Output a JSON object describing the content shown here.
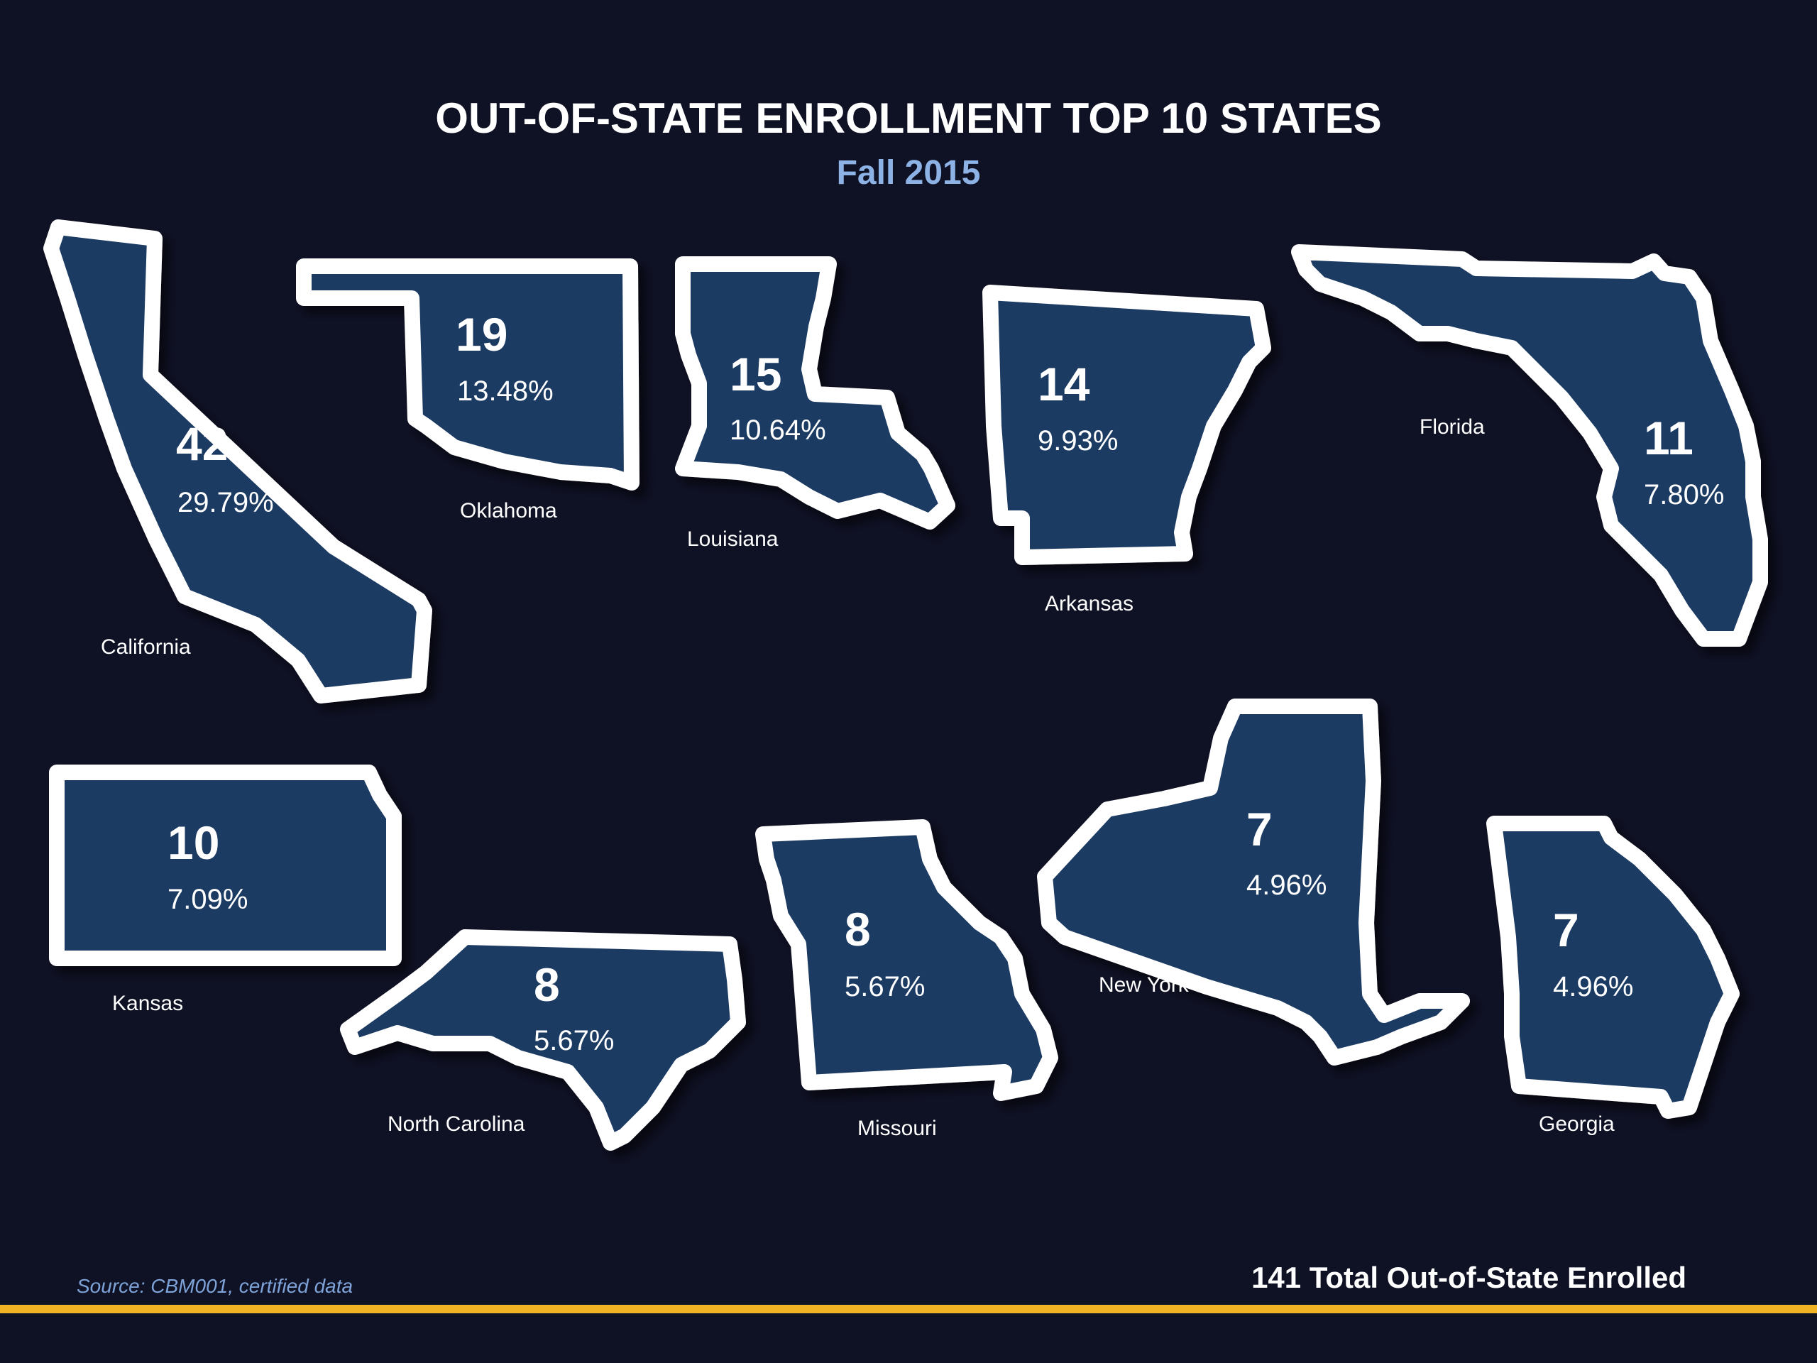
{
  "header": {
    "title": "OUT-OF-STATE ENROLLMENT TOP 10 STATES",
    "subtitle": "Fall 2015"
  },
  "states": [
    {
      "name": "California",
      "count": "42",
      "percent": "29.79%"
    },
    {
      "name": "Oklahoma",
      "count": "19",
      "percent": "13.48%"
    },
    {
      "name": "Louisiana",
      "count": "15",
      "percent": "10.64%"
    },
    {
      "name": "Arkansas",
      "count": "14",
      "percent": "9.93%"
    },
    {
      "name": "Florida",
      "count": "11",
      "percent": "7.80%"
    },
    {
      "name": "Kansas",
      "count": "10",
      "percent": "7.09%"
    },
    {
      "name": "North Carolina",
      "count": "8",
      "percent": "5.67%"
    },
    {
      "name": "Missouri",
      "count": "8",
      "percent": "5.67%"
    },
    {
      "name": "New York",
      "count": "7",
      "percent": "4.96%"
    },
    {
      "name": "Georgia",
      "count": "7",
      "percent": "4.96%"
    }
  ],
  "footer": {
    "source": "Source: CBM001, certified data",
    "total": "141 Total Out-of-State Enrolled"
  },
  "colors": {
    "background": "#0f1124",
    "state_fill": "#1d3a64",
    "state_outline": "#ffffff",
    "subtitle": "#8db3e6",
    "source_text": "#7ea3d8",
    "footer_bar": "#f0b323"
  }
}
